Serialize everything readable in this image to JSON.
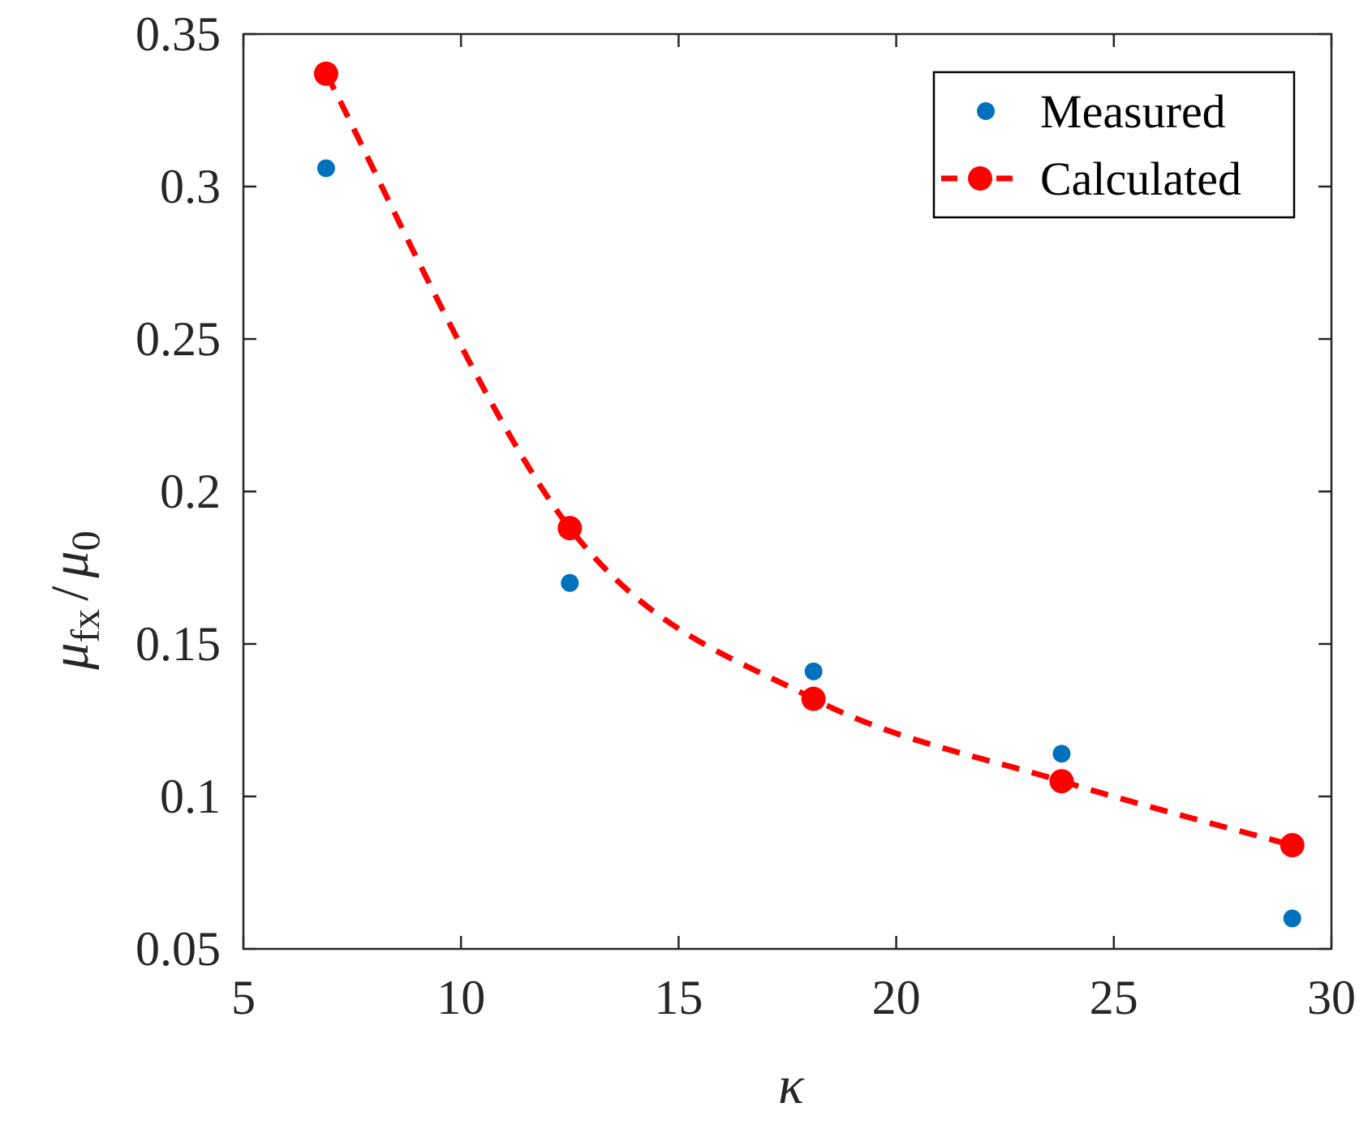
{
  "chart_data": {
    "type": "scatter",
    "title": "",
    "xlabel": "κ",
    "ylabel": {
      "mu1": "μ",
      "sub1": "fx",
      "slash": "/",
      "mu2": "μ",
      "sub2": "0"
    },
    "xlim": [
      5,
      30
    ],
    "ylim": [
      0.05,
      0.35
    ],
    "x_ticks": [
      5,
      10,
      15,
      20,
      25,
      30
    ],
    "x_tick_labels": [
      "5",
      "10",
      "15",
      "20",
      "25",
      "30"
    ],
    "y_ticks": [
      0.05,
      0.1,
      0.15,
      0.2,
      0.25,
      0.3,
      0.35
    ],
    "y_tick_labels": [
      "0.05",
      "0.1",
      "0.15",
      "0.2",
      "0.25",
      "0.3",
      "0.35"
    ],
    "grid": false,
    "legend_position": "top-right",
    "series": [
      {
        "name": "Measured",
        "style": "markers",
        "color": "#0072BD",
        "x": [
          6.9,
          12.5,
          18.1,
          23.8,
          29.1
        ],
        "y": [
          0.306,
          0.17,
          0.141,
          0.114,
          0.06
        ]
      },
      {
        "name": "Calculated",
        "style": "dashed-line-markers",
        "color": "#FF0000",
        "x": [
          6.9,
          12.5,
          18.1,
          23.8,
          29.1
        ],
        "y": [
          0.337,
          0.188,
          0.132,
          0.105,
          0.084
        ]
      }
    ]
  }
}
